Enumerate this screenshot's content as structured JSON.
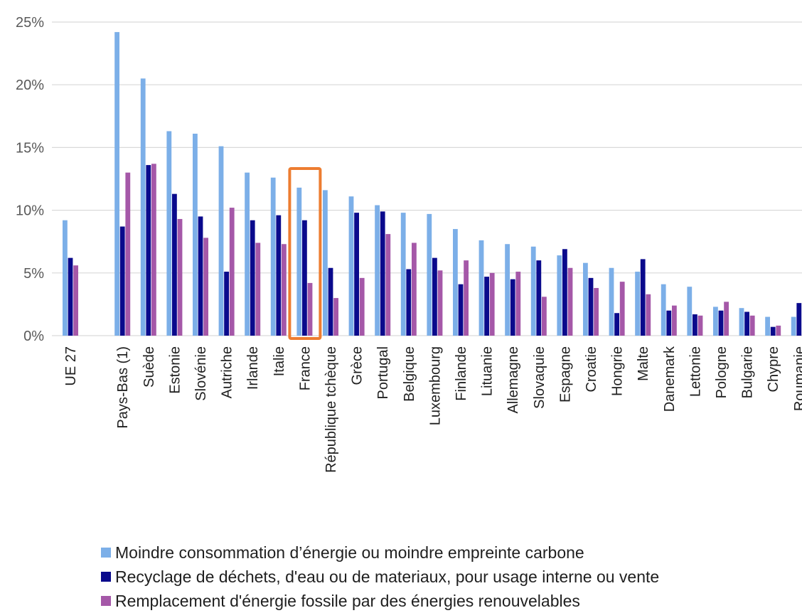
{
  "chart_data": {
    "type": "bar",
    "y_ticks": [
      "0%",
      "5%",
      "10%",
      "15%",
      "20%",
      "25%"
    ],
    "ylim": [
      0,
      25
    ],
    "grid": true,
    "legend_position": "bottom",
    "highlight_category": "France",
    "highlight_color": "#ED7D31",
    "categories": [
      "UE 27",
      "",
      "Pays-Bas (1)",
      "Suède",
      "Estonie",
      "Slovénie",
      "Autriche",
      "Irlande",
      "Italie",
      "France",
      "République tchèque",
      "Grèce",
      "Portugal",
      "Belgique",
      "Luxembourg",
      "Finlande",
      "Lituanie",
      "Allemagne",
      "Slovaquie",
      "Espagne",
      "Croatie",
      "Hongrie",
      "Malte",
      "Danemark",
      "Lettonie",
      "Pologne",
      "Bulgarie",
      "Chypre",
      "Roumanie"
    ],
    "series": [
      {
        "name": "Moindre consommation d’énergie ou moindre empreinte carbone",
        "color": "#7CAFE8",
        "values": [
          9.2,
          null,
          24.2,
          20.5,
          16.3,
          16.1,
          15.1,
          13.0,
          12.6,
          11.8,
          11.6,
          11.1,
          10.4,
          9.8,
          9.7,
          8.5,
          7.6,
          7.3,
          7.1,
          6.4,
          5.8,
          5.4,
          5.1,
          4.1,
          3.9,
          2.3,
          2.2,
          1.5,
          1.5
        ]
      },
      {
        "name": "Recyclage de déchets, d'eau ou de materiaux, pour usage interne ou vente",
        "color": "#0A0A8C",
        "values": [
          6.2,
          null,
          8.7,
          13.6,
          11.3,
          9.5,
          5.1,
          9.2,
          9.6,
          9.2,
          5.4,
          9.8,
          9.9,
          5.3,
          6.2,
          4.1,
          4.7,
          4.5,
          6.0,
          6.9,
          4.6,
          1.8,
          6.1,
          2.0,
          1.7,
          2.0,
          1.9,
          0.7,
          2.6
        ]
      },
      {
        "name": "Remplacement d'énergie fossile par des énergies renouvelables",
        "color": "#A558A8",
        "values": [
          5.6,
          null,
          13.0,
          13.7,
          9.3,
          7.8,
          10.2,
          7.4,
          7.3,
          4.2,
          3.0,
          4.6,
          8.1,
          7.4,
          5.2,
          6.0,
          5.0,
          5.1,
          3.1,
          5.4,
          3.8,
          4.3,
          3.3,
          2.4,
          1.6,
          2.7,
          1.6,
          0.8,
          null
        ]
      }
    ]
  }
}
